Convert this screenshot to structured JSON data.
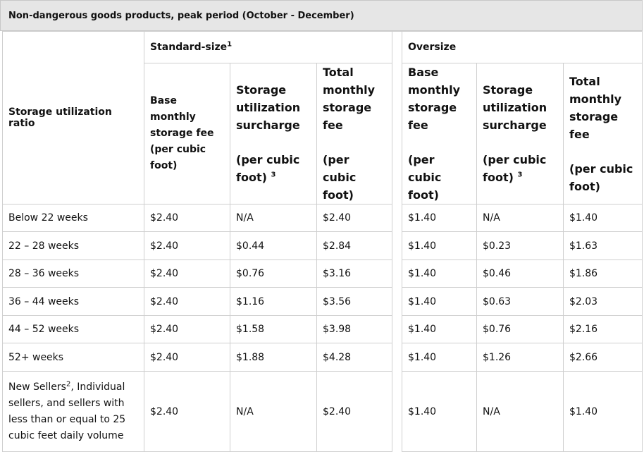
{
  "title": "Non-dangerous goods products, peak period (October - December)",
  "groups": {
    "standard": "Standard-size",
    "standard_sup": "1",
    "oversize": "Oversize"
  },
  "row_header": "Storage utilization ratio",
  "columns": {
    "base_main": "Base monthly storage fee",
    "base_unit": "(per cubic foot)",
    "surcharge_main": "Storage utilization surcharge",
    "surcharge_unit": "(per cubic foot)",
    "surcharge_sup": "3",
    "total_main": "Total monthly storage fee",
    "total_unit": "(per cubic foot)"
  },
  "rows": [
    {
      "ratio": "Below 22 weeks",
      "cells": [
        "$2.40",
        "N/A",
        "$2.40",
        "$1.40",
        "N/A",
        "$1.40"
      ]
    },
    {
      "ratio": "22 – 28 weeks",
      "cells": [
        "$2.40",
        "$0.44",
        "$2.84",
        "$1.40",
        "$0.23",
        "$1.63"
      ]
    },
    {
      "ratio": "28 – 36 weeks",
      "cells": [
        "$2.40",
        "$0.76",
        "$3.16",
        "$1.40",
        "$0.46",
        "$1.86"
      ]
    },
    {
      "ratio": "36 – 44 weeks",
      "cells": [
        "$2.40",
        "$1.16",
        "$3.56",
        "$1.40",
        "$0.63",
        "$2.03"
      ]
    },
    {
      "ratio": "44 – 52 weeks",
      "cells": [
        "$2.40",
        "$1.58",
        "$3.98",
        "$1.40",
        "$0.76",
        "$2.16"
      ]
    },
    {
      "ratio": "52+ weeks",
      "cells": [
        "$2.40",
        "$1.88",
        "$4.28",
        "$1.40",
        "$1.26",
        "$2.66"
      ]
    }
  ],
  "last_row": {
    "ratio_a": "New Sellers",
    "ratio_sup": "2",
    "ratio_b": ", Individual sellers, and sellers with less than or equal to 25 cubic feet daily volume",
    "cells": [
      "$2.40",
      "N/A",
      "$2.40",
      "$1.40",
      "N/A",
      "$1.40"
    ]
  }
}
